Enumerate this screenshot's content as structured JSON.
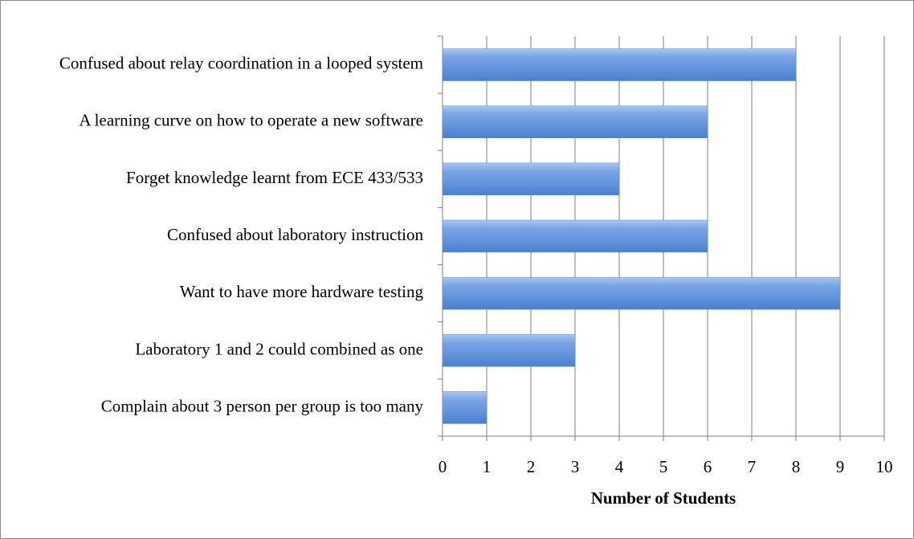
{
  "chart_data": {
    "type": "barh",
    "categories": [
      "Confused about relay coordination in a looped system",
      "A learning curve on how to operate a new software",
      "Forget knowledge learnt from ECE 433/533",
      "Confused about laboratory instruction",
      "Want to have more hardware testing",
      "Laboratory 1 and 2 could combined as one",
      "Complain about 3 person per group is too many"
    ],
    "values": [
      8,
      6,
      4,
      6,
      9,
      3,
      1
    ],
    "color": "#5b8fdc",
    "xlabel": "Number of Students",
    "xlim": [
      0,
      10
    ],
    "xticks": [
      0,
      1,
      2,
      3,
      4,
      5,
      6,
      7,
      8,
      9,
      10
    ],
    "grid": true
  }
}
